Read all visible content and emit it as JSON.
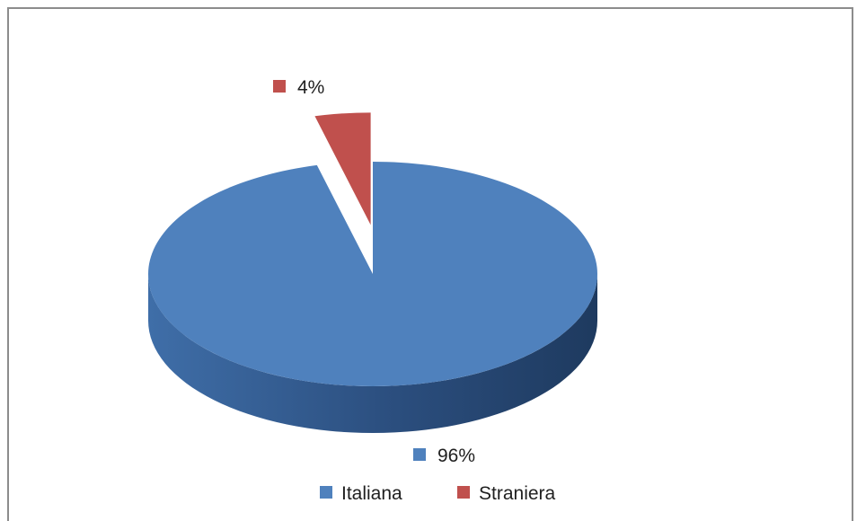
{
  "chart_data": {
    "type": "pie",
    "title": "",
    "categories": [
      "Italiana",
      "Straniera"
    ],
    "values": [
      96,
      4
    ],
    "unit": "%",
    "data_labels": [
      "96%",
      "4%"
    ],
    "legend_position": "bottom",
    "style": "3d-exploded",
    "colors": [
      "#4F81BD",
      "#C0504D"
    ]
  }
}
